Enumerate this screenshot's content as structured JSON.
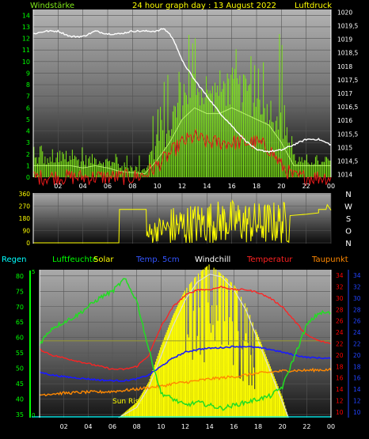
{
  "header": {
    "left_label": "Windstärke",
    "title": "24 hour graph day : 13 August 2022",
    "right_label": "Luftdruck"
  },
  "middle": {
    "compass": [
      "N",
      "W",
      "S",
      "O",
      "N"
    ]
  },
  "legend": {
    "regen": "Regen",
    "luftfeuchte": "Luftfeuchte",
    "solar": "Solar",
    "temp5cm": "Temp. 5cm",
    "windchill": "Windchill",
    "temperatur": "Temperatur",
    "taupunkt": "Taupunkt"
  },
  "annotation": {
    "sunrise": "Sun Rise"
  },
  "colors": {
    "wind_bars": "#7fe81a",
    "gust": "#e81a1a",
    "pressure": "#ffffff",
    "direction": "#ffff00",
    "humidity": "#22dd22",
    "solar": "#ffff00",
    "temp5cm": "#1a1aff",
    "temperature": "#ff2222",
    "dewpoint": "#ff8800",
    "windchill": "#ffffff",
    "regen": "#00ffff",
    "axis_green": "#00ff00",
    "axis_red": "#ff0000",
    "axis_blue": "#2244ff",
    "axis_yellow": "#ffff00"
  },
  "chart_data": [
    {
      "id": "wind_pressure",
      "type": "line",
      "grid": true,
      "x_tick_labels": [
        "02",
        "04",
        "06",
        "08",
        "10",
        "12",
        "14",
        "16",
        "18",
        "20",
        "22",
        "00"
      ],
      "xlim": [
        0,
        24
      ],
      "y_left_ticks": [
        0,
        1,
        2,
        3,
        4,
        5,
        6,
        7,
        8,
        9,
        10,
        11,
        12,
        13,
        14
      ],
      "ylim_left": [
        0,
        14.5
      ],
      "y_right_ticks": [
        "1014",
        "1014,5",
        "1015",
        "1015,5",
        "1016",
        "1016,5",
        "1017",
        "1017,5",
        "1018",
        "1018,5",
        "1019",
        "1019,5",
        "1020"
      ],
      "ylim_right": [
        1013.9,
        1020.1
      ],
      "pressure": {
        "x": [
          0,
          1,
          2,
          3,
          4,
          5,
          6,
          7,
          8,
          9,
          10,
          10.5,
          11,
          11.5,
          12,
          13,
          14,
          15,
          16,
          17,
          18,
          19,
          20,
          21,
          22,
          23,
          24
        ],
        "values": [
          1019.2,
          1019.3,
          1019.3,
          1019.1,
          1019.1,
          1019.3,
          1019.2,
          1019.2,
          1019.3,
          1019.3,
          1019.3,
          1019.4,
          1019.2,
          1018.8,
          1018.2,
          1017.5,
          1016.9,
          1016.3,
          1015.8,
          1015.3,
          1014.9,
          1014.85,
          1014.9,
          1015.1,
          1015.3,
          1015.3,
          1015.1
        ]
      },
      "wind_speed_mean": {
        "x": [
          0,
          1,
          2,
          3,
          4,
          5,
          6,
          7,
          8,
          9,
          10,
          11,
          12,
          13,
          14,
          15,
          16,
          17,
          18,
          19,
          20,
          21,
          22,
          23,
          24
        ],
        "values": [
          1,
          1,
          1,
          1,
          0.8,
          1,
          0.8,
          0.5,
          0.4,
          0.3,
          1.5,
          3,
          5,
          6,
          5.5,
          5.5,
          6,
          5.5,
          5,
          4.5,
          3,
          1,
          1,
          1,
          1
        ]
      },
      "wind_gust_peak": {
        "x": [
          0,
          2,
          4,
          6,
          8,
          9,
          10,
          11,
          12,
          13,
          14,
          15,
          16,
          17,
          18,
          19,
          20,
          21,
          22,
          24
        ],
        "values": [
          3.5,
          2.5,
          3.5,
          3,
          2,
          2,
          9,
          9,
          14,
          14,
          11,
          14,
          14,
          13,
          12,
          10,
          14,
          4,
          2,
          2
        ]
      },
      "gust_red": {
        "x": [
          0,
          2,
          4,
          6,
          8,
          9,
          10,
          11,
          12,
          13,
          14,
          15,
          16,
          17,
          18,
          19,
          20,
          21,
          22,
          24
        ],
        "values": [
          0,
          0,
          0,
          0,
          0,
          0.2,
          1,
          2,
          3,
          3.5,
          3,
          3,
          3,
          3,
          3,
          2.5,
          1,
          0,
          0,
          0
        ]
      }
    },
    {
      "id": "wind_direction",
      "type": "line",
      "ylim": [
        0,
        360
      ],
      "y_ticks": [
        0,
        90,
        180,
        270,
        360
      ],
      "direction": {
        "x": [
          0,
          3,
          5,
          6.9,
          6.95,
          9.1,
          9.15,
          10,
          12,
          14,
          16,
          18,
          20,
          20.6,
          20.7,
          22,
          23,
          23.5,
          24
        ],
        "values": [
          0,
          0,
          0,
          0,
          245,
          245,
          50,
          100,
          120,
          150,
          160,
          140,
          150,
          150,
          200,
          210,
          220,
          245,
          240
        ]
      }
    },
    {
      "id": "climate",
      "type": "line",
      "y_humidity_ticks": [
        35,
        40,
        45,
        50,
        55,
        60,
        65,
        70,
        75,
        80
      ],
      "ylim_humidity": [
        34,
        82
      ],
      "y_temp_ticks": [
        10,
        12,
        14,
        16,
        18,
        20,
        22,
        24,
        26,
        28,
        30,
        32,
        34
      ],
      "ylim_temp": [
        9,
        35
      ],
      "regen_ticks": [
        0,
        5
      ],
      "humidity": {
        "x": [
          0,
          1,
          2,
          3,
          4,
          5,
          6,
          7,
          8,
          9,
          10,
          11,
          12,
          13,
          14,
          15,
          16,
          17,
          18,
          19,
          20,
          21,
          22,
          23,
          24
        ],
        "values": [
          58,
          63,
          65,
          67,
          70,
          73,
          75,
          79,
          72,
          56,
          42,
          40,
          38,
          39,
          38,
          37,
          38,
          39,
          40,
          41,
          44,
          54,
          64,
          68,
          68
        ]
      },
      "temperature": {
        "x": [
          0,
          1,
          2,
          3,
          4,
          5,
          6,
          7,
          8,
          9,
          10,
          11,
          12,
          13,
          14,
          15,
          16,
          17,
          18,
          19,
          20,
          21,
          22,
          23,
          24
        ],
        "values": [
          21,
          20,
          19.5,
          19,
          18.5,
          18,
          17.5,
          17.5,
          18,
          20,
          25,
          28.5,
          30.5,
          31.5,
          31.5,
          32,
          31.5,
          31.5,
          31,
          30,
          28.5,
          26,
          23.5,
          22.5,
          22
        ]
      },
      "temp_5cm": {
        "x": [
          0,
          1,
          2,
          3,
          4,
          5,
          6,
          7,
          8,
          9,
          10,
          11,
          12,
          13,
          14,
          15,
          16,
          17,
          18,
          19,
          20,
          21,
          22,
          23,
          24
        ],
        "values": [
          17,
          16.5,
          16.2,
          16,
          15.8,
          15.6,
          15.5,
          15.5,
          15.8,
          16.5,
          18,
          19.5,
          20.5,
          21,
          21.2,
          21.3,
          21.5,
          21.5,
          21.3,
          21,
          20.5,
          20,
          19.6,
          19.5,
          19.4
        ]
      },
      "dewpoint": {
        "x": [
          0,
          1,
          2,
          3,
          4,
          5,
          6,
          7,
          8,
          9,
          10,
          11,
          12,
          13,
          14,
          15,
          16,
          17,
          18,
          19,
          20,
          21,
          22,
          23,
          24
        ],
        "values": [
          13,
          13.2,
          13.3,
          13.4,
          13.5,
          13.5,
          13.6,
          13.8,
          14,
          14.3,
          14.5,
          15,
          15.2,
          15.5,
          15.8,
          16,
          16.2,
          16.5,
          16.8,
          17,
          17.2,
          17.3,
          17.3,
          17.4,
          17.4
        ]
      },
      "windchill": {
        "x": [
          0,
          4,
          8,
          10,
          12,
          14,
          16,
          18,
          20,
          22,
          24
        ],
        "values": [
          21,
          18.5,
          18,
          25,
          30.5,
          31.5,
          31.5,
          31,
          28.5,
          23.5,
          22
        ]
      },
      "solar_theoretical": {
        "x": [
          6.5,
          8,
          9,
          10,
          11,
          12,
          13,
          14,
          15,
          16,
          17,
          18,
          19,
          20,
          20.5
        ],
        "values": [
          0,
          2,
          6,
          12,
          18,
          23,
          26.5,
          28,
          27.5,
          25,
          21,
          15,
          9,
          3,
          0
        ]
      },
      "solar": {
        "x": [
          6.5,
          8,
          9,
          10,
          11,
          12,
          13,
          14,
          15,
          16,
          17,
          18,
          19,
          20,
          20.5
        ],
        "values": [
          0,
          3,
          7,
          14,
          20,
          25,
          28,
          30,
          28,
          26,
          22,
          16,
          10,
          4,
          0
        ]
      }
    }
  ]
}
